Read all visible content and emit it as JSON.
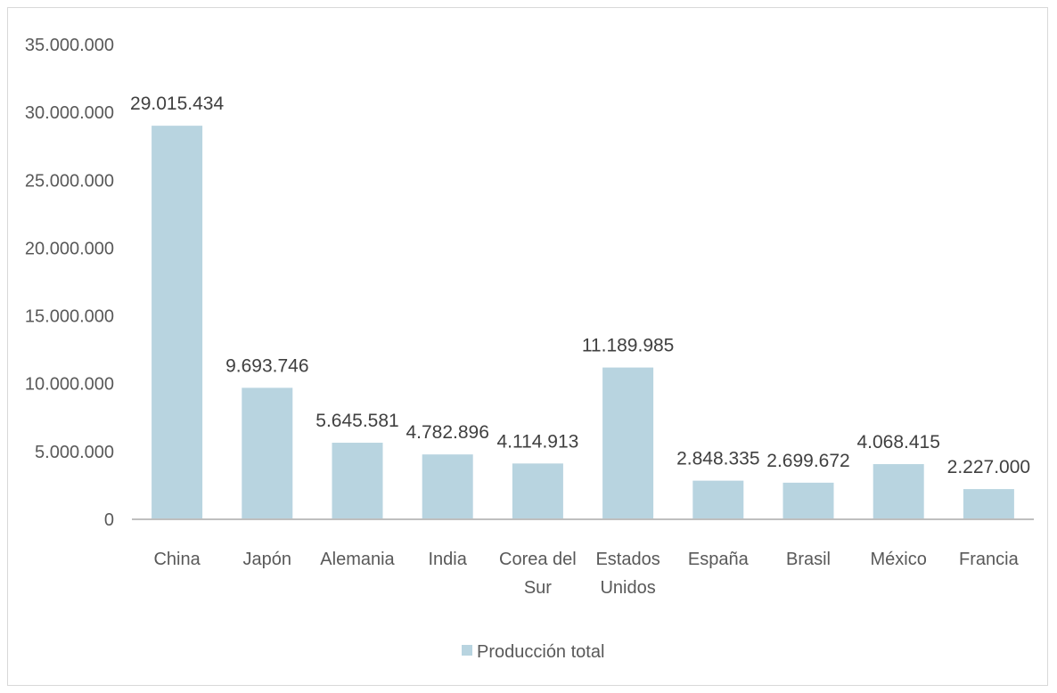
{
  "chart_data": {
    "type": "bar",
    "categories": [
      [
        "China"
      ],
      [
        "Japón"
      ],
      [
        "Alemania"
      ],
      [
        "India"
      ],
      [
        "Corea del",
        "Sur"
      ],
      [
        "Estados",
        "Unidos"
      ],
      [
        "España"
      ],
      [
        "Brasil"
      ],
      [
        "México"
      ],
      [
        "Francia"
      ]
    ],
    "series": [
      {
        "name": "Producción total",
        "color": "#b8d4e0",
        "values": [
          29015434,
          9693746,
          5645581,
          4782896,
          4114913,
          11189985,
          2848335,
          2699672,
          4068415,
          2227000
        ],
        "value_labels": [
          "29.015.434",
          "9.693.746",
          "5.645.581",
          "4.782.896",
          "4.114.913",
          "11.189.985",
          "2.848.335",
          "2.699.672",
          "4.068.415",
          "2.227.000"
        ]
      }
    ],
    "y_ticks": [
      {
        "value": 0,
        "label": "0"
      },
      {
        "value": 5000000,
        "label": "5.000.000"
      },
      {
        "value": 10000000,
        "label": "10.000.000"
      },
      {
        "value": 15000000,
        "label": "15.000.000"
      },
      {
        "value": 20000000,
        "label": "20.000.000"
      },
      {
        "value": 25000000,
        "label": "25.000.000"
      },
      {
        "value": 30000000,
        "label": "30.000.000"
      },
      {
        "value": 35000000,
        "label": "35.000.000"
      }
    ],
    "ylim": [
      0,
      35000000
    ],
    "grid": false,
    "legend_position": "bottom",
    "axis_color": "#bfbfbf"
  }
}
